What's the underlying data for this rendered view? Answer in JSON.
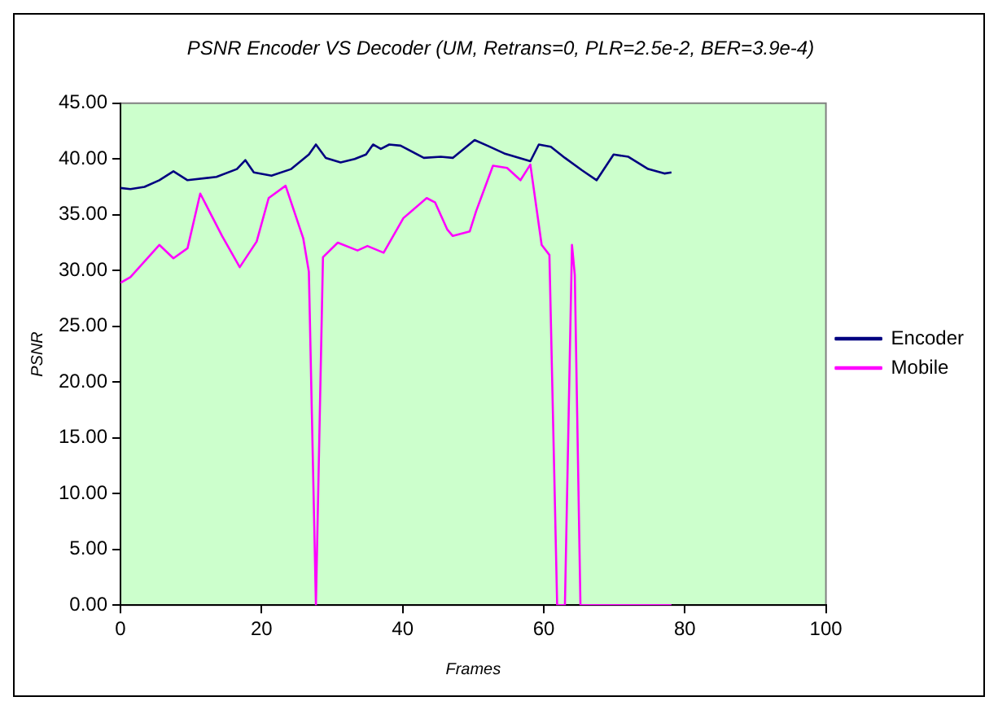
{
  "chart_data": {
    "type": "line",
    "title": "PSNR Encoder VS Decoder (UM, Retrans=0, PLR=2.5e-2, BER=3.9e-4)",
    "xlabel": "Frames",
    "ylabel": "PSNR",
    "xlim": [
      0,
      100
    ],
    "xticks": [
      0,
      20,
      40,
      60,
      80,
      100
    ],
    "ylim": [
      0,
      45
    ],
    "yticks": [
      {
        "value": 0,
        "label": "0.00"
      },
      {
        "value": 5,
        "label": "5.00"
      },
      {
        "value": 10,
        "label": "10.00"
      },
      {
        "value": 15,
        "label": "15.00"
      },
      {
        "value": 20,
        "label": "20.00"
      },
      {
        "value": 25,
        "label": "25.00"
      },
      {
        "value": 30,
        "label": "30.00"
      },
      {
        "value": 35,
        "label": "35.00"
      },
      {
        "value": 40,
        "label": "40.00"
      },
      {
        "value": 45,
        "label": "45.00"
      }
    ],
    "grid": false,
    "legend": "right",
    "marker": "none",
    "line_style": "solid",
    "series": [
      {
        "name": "Encoder",
        "color": "#000080",
        "x": [
          0,
          1.4,
          3.4,
          5.5,
          7.5,
          9.5,
          13.6,
          16.5,
          17.7,
          18.9,
          21.4,
          24.2,
          26.7,
          27.7,
          29.1,
          31.2,
          33.2,
          34.8,
          35.8,
          36.9,
          38.1,
          39.7,
          43,
          45.4,
          47.1,
          50.2,
          52,
          54.4,
          58.1,
          59.3,
          61,
          63,
          65.4,
          67.5,
          69.9,
          72,
          74.8,
          77.1,
          78.1
        ],
        "values": [
          37.4,
          37.3,
          37.5,
          38.1,
          38.9,
          38.1,
          38.4,
          39.1,
          39.9,
          38.8,
          38.5,
          39.1,
          40.4,
          41.3,
          40.1,
          39.7,
          40,
          40.4,
          41.3,
          40.9,
          41.3,
          41.2,
          40.1,
          40.2,
          40.1,
          41.7,
          41.2,
          40.5,
          39.8,
          41.3,
          41.1,
          40.1,
          39,
          38.1,
          40.4,
          40.2,
          39.1,
          38.7,
          38.8
        ]
      },
      {
        "name": "Mobile",
        "color": "#ff00ff",
        "x": [
          0,
          1.4,
          5.5,
          7.5,
          9.5,
          11.3,
          14.4,
          16.9,
          19.3,
          21,
          23.4,
          25.9,
          26.7,
          27.7,
          28.7,
          30.8,
          33.6,
          35,
          37.3,
          40.1,
          43.4,
          44.6,
          46.3,
          47.1,
          49.5,
          50.4,
          52.8,
          54.8,
          56.7,
          58.1,
          59.7,
          60.8,
          61.9,
          63,
          64,
          64.4,
          65.2,
          78.1
        ],
        "values": [
          28.9,
          29.4,
          32.3,
          31.1,
          32,
          36.9,
          33.1,
          30.3,
          32.6,
          36.5,
          37.6,
          32.9,
          29.9,
          0,
          31.2,
          32.5,
          31.8,
          32.2,
          31.6,
          34.7,
          36.5,
          36.1,
          33.7,
          33.1,
          33.5,
          35.3,
          39.4,
          39.2,
          38.1,
          39.5,
          32.3,
          31.4,
          0,
          0,
          32.3,
          29.6,
          0,
          0
        ]
      }
    ]
  }
}
